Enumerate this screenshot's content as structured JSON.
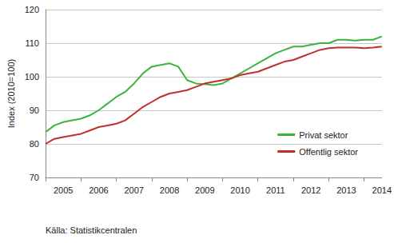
{
  "chart_data": {
    "type": "line",
    "y_label": "Index (2010=100)",
    "annotation": "Källa: Statistikcentralen",
    "x": [
      null,
      null,
      "2005",
      null,
      null,
      null,
      "2006",
      null,
      null,
      null,
      "2007",
      null,
      null,
      null,
      "2008",
      null,
      null,
      null,
      "2009",
      null,
      null,
      null,
      "2010",
      null,
      null,
      null,
      "2011",
      null,
      null,
      null,
      "2012",
      null,
      null,
      null,
      "2013",
      null,
      null,
      null,
      "2014"
    ],
    "series": [
      {
        "name": "Privat sektor",
        "color": "#3cb43c",
        "values": [
          83.5,
          85.5,
          86.5,
          87,
          87.5,
          88.5,
          90,
          92,
          94,
          95.5,
          98,
          101,
          103,
          103.5,
          104,
          103,
          99,
          98,
          97.8,
          97.5,
          98,
          99.5,
          101,
          102.5,
          104,
          105.5,
          107,
          108,
          109,
          109,
          109.5,
          110,
          110,
          111,
          111,
          110.8,
          111,
          111,
          112
        ]
      },
      {
        "name": "Offentlig sektor",
        "color": "#c0302b",
        "values": [
          80,
          81.5,
          82,
          82.5,
          83,
          84,
          85,
          85.5,
          86,
          87,
          89,
          91,
          92.5,
          94,
          95,
          95.5,
          96,
          97,
          98,
          98.5,
          99,
          99.5,
          100.5,
          101,
          101.5,
          102.5,
          103.5,
          104.5,
          105,
          106,
          107,
          108,
          108.5,
          108.7,
          108.7,
          108.7,
          108.5,
          108.7,
          109
        ]
      }
    ],
    "ylim": [
      70,
      120
    ],
    "yticks": [
      70,
      80,
      90,
      100,
      110,
      120
    ],
    "grid": true,
    "legend": "lower right"
  }
}
